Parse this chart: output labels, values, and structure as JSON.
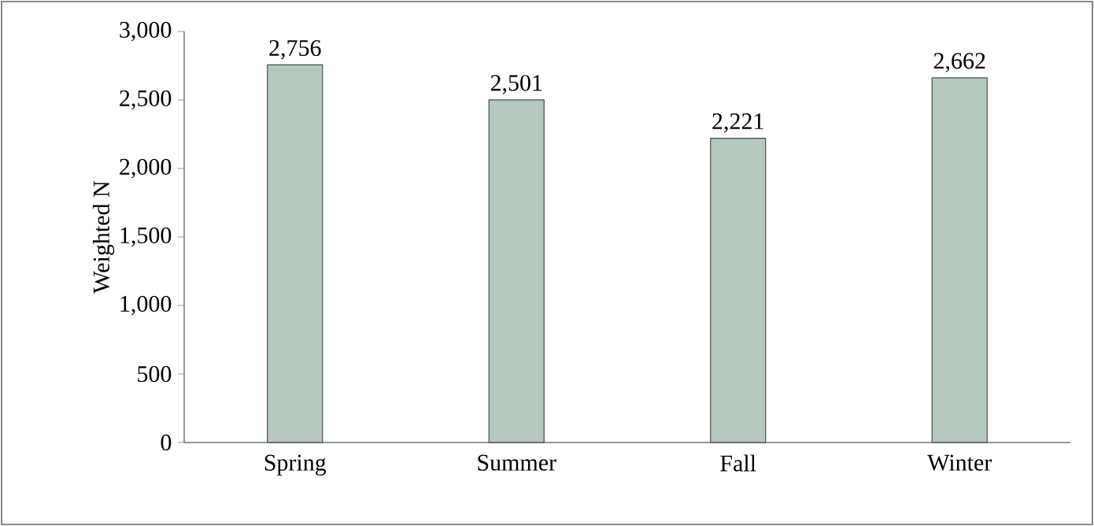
{
  "chart_data": {
    "type": "bar",
    "ylabel": "Weighted N",
    "categories": [
      "Spring",
      "Summer",
      "Fall",
      "Winter"
    ],
    "values": [
      2756,
      2501,
      2221,
      2662
    ],
    "value_labels": [
      "2,756",
      "2,501",
      "2,221",
      "2,662"
    ],
    "color": "#b5c9bf",
    "ylim": [
      0,
      3000
    ],
    "yticks": [
      {
        "value": 0,
        "label": "0"
      },
      {
        "value": 500,
        "label": "500"
      },
      {
        "value": 1000,
        "label": "1,000"
      },
      {
        "value": 1500,
        "label": "1,500"
      },
      {
        "value": 2000,
        "label": "2,000"
      },
      {
        "value": 2500,
        "label": "2,500"
      },
      {
        "value": 3000,
        "label": "3,000"
      }
    ],
    "grid": false
  }
}
